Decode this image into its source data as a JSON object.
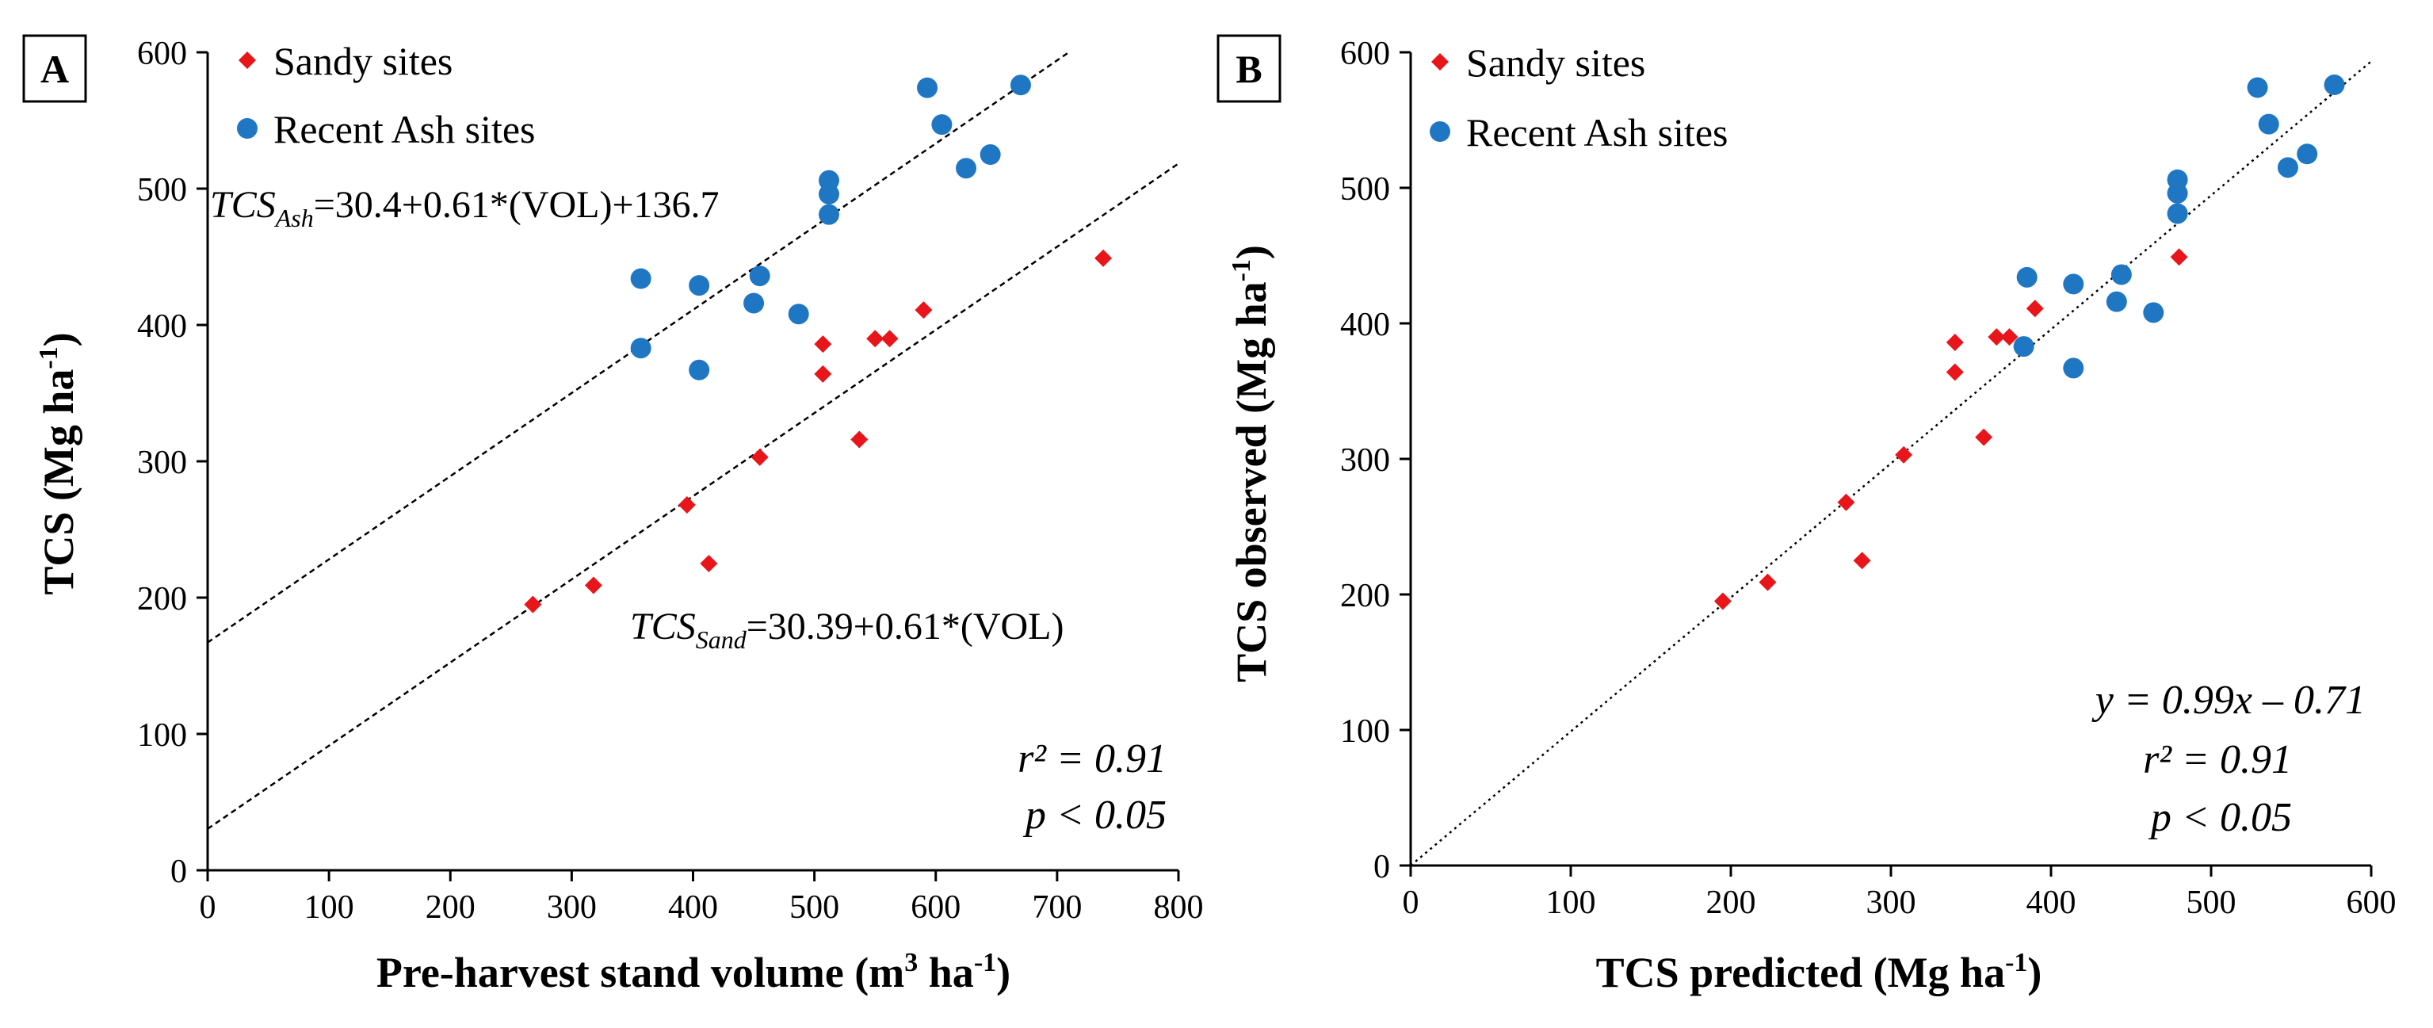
{
  "chart_data": [
    {
      "type": "scatter",
      "panel_label": "A",
      "xlabel_main": "Pre-harvest stand volume (m",
      "xlabel_sup": "3",
      "xlabel_mid": " ha",
      "xlabel_sup2": "-1",
      "xlabel_end": ")",
      "ylabel_main": "TCS (Mg ha",
      "ylabel_sup": "-1",
      "ylabel_end": ")",
      "xlim": [
        0,
        800
      ],
      "ylim": [
        0,
        600
      ],
      "xticks": [
        0,
        100,
        200,
        300,
        400,
        500,
        600,
        700,
        800
      ],
      "yticks": [
        0,
        100,
        200,
        300,
        400,
        500,
        600
      ],
      "legend": [
        "Sandy sites",
        "Recent Ash sites"
      ],
      "series": [
        {
          "name": "Sandy sites",
          "color": "#e8161b",
          "marker": "diamond",
          "points": [
            [
              268,
              195
            ],
            [
              318,
              209
            ],
            [
              395,
              268
            ],
            [
              413,
              225
            ],
            [
              455,
              303
            ],
            [
              507,
              386
            ],
            [
              507,
              364
            ],
            [
              537,
              316
            ],
            [
              550,
              390
            ],
            [
              562,
              390
            ],
            [
              590,
              411
            ],
            [
              738,
              449
            ]
          ]
        },
        {
          "name": "Recent Ash sites",
          "color": "#1f77c4",
          "marker": "circle",
          "points": [
            [
              357,
              434
            ],
            [
              357,
              383
            ],
            [
              405,
              429
            ],
            [
              405,
              367
            ],
            [
              450,
              416
            ],
            [
              455,
              436
            ],
            [
              487,
              408
            ],
            [
              512,
              506
            ],
            [
              512,
              496
            ],
            [
              512,
              481
            ],
            [
              593,
              574
            ],
            [
              605,
              547
            ],
            [
              625,
              515
            ],
            [
              645,
              525
            ],
            [
              670,
              576
            ]
          ]
        }
      ],
      "lines": [
        {
          "name": "ash-fit",
          "x": [
            0,
            710
          ],
          "y": [
            167.1,
            600.2
          ]
        },
        {
          "name": "sand-fit",
          "x": [
            0,
            800
          ],
          "y": [
            30.39,
            518.39
          ]
        }
      ],
      "equation_ash": {
        "base": "TCS",
        "sub": "Ash",
        "rest": "=30.4+0.61*(VOL)+136.7"
      },
      "equation_sand": {
        "base": "TCS",
        "sub": "Sand",
        "rest": "=30.39+0.61*(VOL)"
      },
      "r2": "r² = 0.91",
      "p": "p < 0.05"
    },
    {
      "type": "scatter",
      "panel_label": "B",
      "xlabel_main": "TCS predicted (Mg ha",
      "xlabel_sup": "-1",
      "xlabel_end": ")",
      "ylabel_main": "TCS observed (Mg ha",
      "ylabel_sup": "-1",
      "ylabel_end": ")",
      "xlim": [
        0,
        600
      ],
      "ylim": [
        0,
        600
      ],
      "xticks": [
        0,
        100,
        200,
        300,
        400,
        500,
        600
      ],
      "yticks": [
        0,
        100,
        200,
        300,
        400,
        500,
        600
      ],
      "legend": [
        "Sandy sites",
        "Recent Ash sites"
      ],
      "series": [
        {
          "name": "Sandy sites",
          "color": "#e8161b",
          "marker": "diamond",
          "points": [
            [
              195,
              195
            ],
            [
              223,
              209
            ],
            [
              272,
              268
            ],
            [
              282,
              225
            ],
            [
              308,
              303
            ],
            [
              340,
              386
            ],
            [
              340,
              364
            ],
            [
              358,
              316
            ],
            [
              366,
              390
            ],
            [
              374,
              390
            ],
            [
              390,
              411
            ],
            [
              480,
              449
            ]
          ]
        },
        {
          "name": "Recent Ash sites",
          "color": "#1f77c4",
          "marker": "circle",
          "points": [
            [
              385,
              434
            ],
            [
              383,
              383
            ],
            [
              414,
              429
            ],
            [
              414,
              367
            ],
            [
              441,
              416
            ],
            [
              444,
              436
            ],
            [
              464,
              408
            ],
            [
              479,
              506
            ],
            [
              479,
              496
            ],
            [
              479,
              481
            ],
            [
              529,
              574
            ],
            [
              536,
              547
            ],
            [
              548,
              515
            ],
            [
              560,
              525
            ],
            [
              577,
              576
            ]
          ]
        }
      ],
      "lines": [
        {
          "name": "one-to-one",
          "x": [
            0,
            600
          ],
          "y": [
            0,
            593.3
          ]
        }
      ],
      "equation": "y = 0.99x – 0.71",
      "r2": "r² = 0.91",
      "p": "p < 0.05"
    }
  ]
}
